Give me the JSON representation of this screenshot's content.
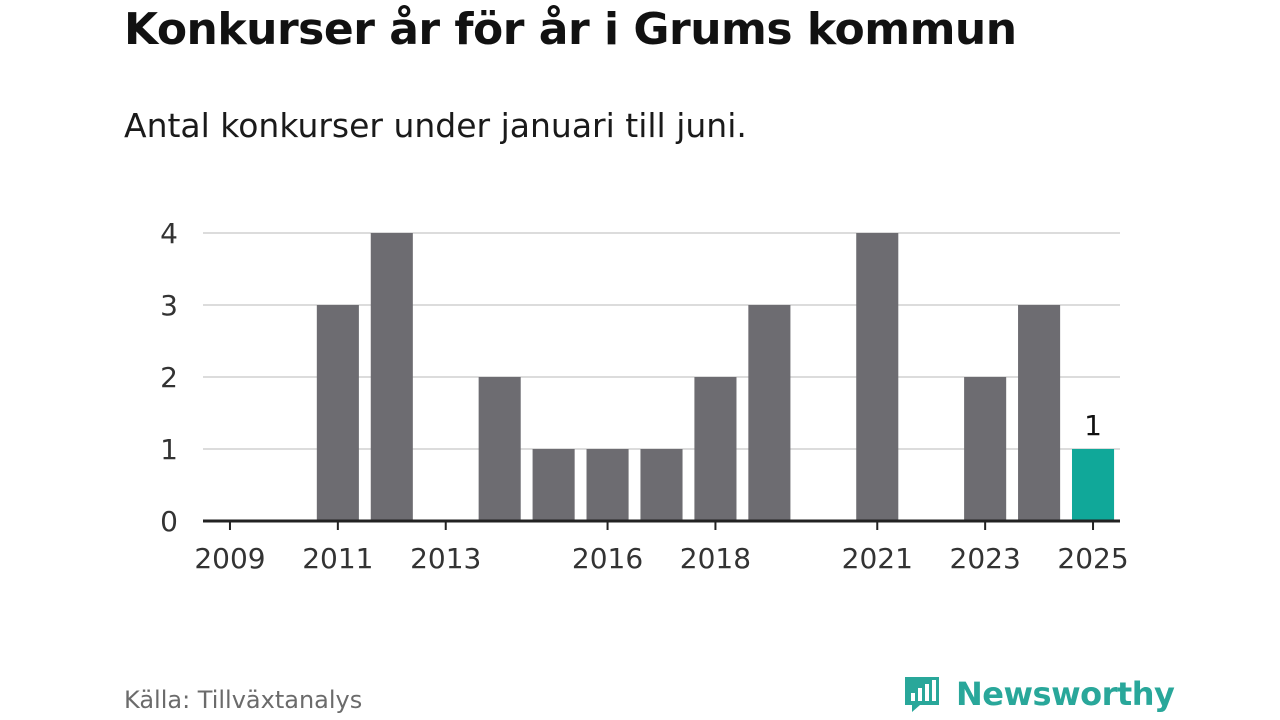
{
  "header": {
    "title": "Konkurser år för år i Grums kommun",
    "subtitle": "Antal konkurser under januari till juni."
  },
  "footer": {
    "source": "Källa: Tillväxtanalys",
    "brand": "Newsworthy"
  },
  "colors": {
    "bar": "#6d6c71",
    "highlight": "#10a899",
    "grid": "#dcdcdc",
    "axis": "#222222",
    "brand": "#29a79a"
  },
  "chart_data": {
    "type": "bar",
    "categories": [
      "2009",
      "2010",
      "2011",
      "2012",
      "2013",
      "2014",
      "2015",
      "2016",
      "2017",
      "2018",
      "2019",
      "2020",
      "2021",
      "2022",
      "2023",
      "2024",
      "2025"
    ],
    "values": [
      0,
      0,
      3,
      4,
      0,
      2,
      1,
      1,
      1,
      2,
      3,
      0,
      4,
      0,
      2,
      3,
      1
    ],
    "highlight_index": 16,
    "data_labels": [
      {
        "index": 16,
        "text": "1"
      }
    ],
    "x_tick_labels": [
      "2009",
      "2011",
      "2013",
      "2016",
      "2018",
      "2021",
      "2023",
      "2025"
    ],
    "y_ticks": [
      0,
      1,
      2,
      3,
      4
    ],
    "ylim": [
      0,
      4
    ],
    "grid": true,
    "legend": "none"
  }
}
